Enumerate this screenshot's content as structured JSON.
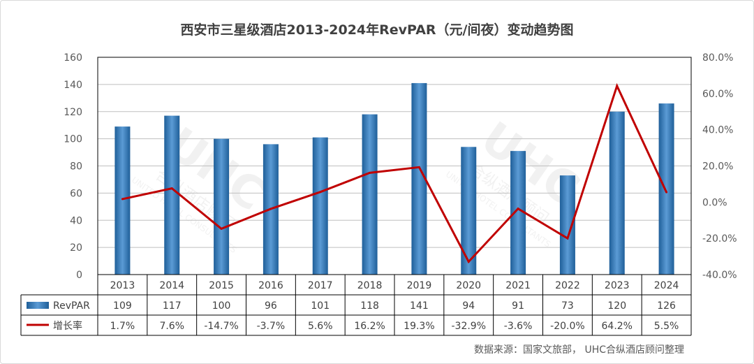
{
  "chart_data": {
    "type": "bar",
    "title": "西安市三星级酒店2013-2024年RevPAR（元/间夜）变动趋势图",
    "source": "数据来源：国家文旅部， UHC合纵酒店顾问整理",
    "categories": [
      "2013",
      "2014",
      "2015",
      "2016",
      "2017",
      "2018",
      "2019",
      "2020",
      "2021",
      "2022",
      "2023",
      "2024"
    ],
    "series": [
      {
        "name": "RevPAR",
        "kind": "bar",
        "axis": "left",
        "color": "#2e75b6",
        "values": [
          109,
          117,
          100,
          96,
          101,
          118,
          141,
          94,
          91,
          73,
          120,
          126
        ],
        "labels": [
          "109",
          "117",
          "100",
          "96",
          "101",
          "118",
          "141",
          "94",
          "91",
          "73",
          "120",
          "126"
        ]
      },
      {
        "name": "增长率",
        "kind": "line",
        "axis": "right",
        "color": "#c00000",
        "values": [
          1.7,
          7.6,
          -14.7,
          -3.7,
          5.6,
          16.2,
          19.3,
          -32.9,
          -3.6,
          -20.0,
          64.2,
          5.5
        ],
        "labels": [
          "1.7%",
          "7.6%",
          "-14.7%",
          "-3.7%",
          "5.6%",
          "16.2%",
          "19.3%",
          "-32.9%",
          "-3.6%",
          "-20.0%",
          "64.2%",
          "5.5%"
        ]
      }
    ],
    "y_left": {
      "range": [
        0,
        160
      ],
      "ticks": [
        "0",
        "20",
        "40",
        "60",
        "80",
        "100",
        "120",
        "140",
        "160"
      ]
    },
    "y_right": {
      "range": [
        -40,
        80
      ],
      "ticks": [
        "-40.0%",
        "-20.0%",
        "0.0%",
        "20.0%",
        "40.0%",
        "60.0%",
        "80.0%"
      ]
    },
    "grid": true,
    "legend": "data-table",
    "watermark": "UHC 合纵酒店顾问 UNITED HOTEL CONSULTANTS"
  }
}
